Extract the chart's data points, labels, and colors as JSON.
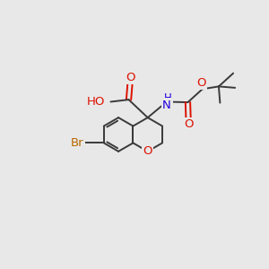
{
  "background_color": "#e8e8e8",
  "bond_color": "#3a3a3a",
  "atom_colors": {
    "O": "#dd1100",
    "N": "#2200dd",
    "Br": "#bb6600",
    "C": "#3a3a3a"
  },
  "bond_lw": 1.4,
  "font_size": 9.5
}
